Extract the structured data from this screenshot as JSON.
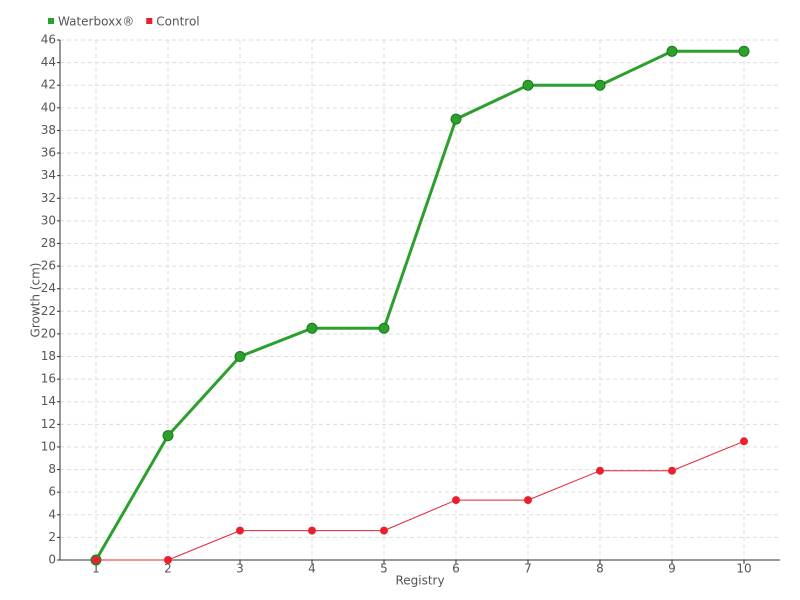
{
  "chart_data": {
    "type": "line",
    "x_label": "Registry",
    "y_label": "Growth (cm)",
    "categories": [
      "1",
      "2",
      "3",
      "4",
      "5",
      "6",
      "7",
      "8",
      "9",
      "10"
    ],
    "series": [
      {
        "name": "Waterboxx®",
        "color": "#2ca02c",
        "values": [
          0,
          11,
          18,
          20.5,
          20.5,
          39,
          42,
          42,
          45,
          45
        ]
      },
      {
        "name": "Control",
        "color": "#e8202f",
        "values": [
          0,
          0,
          2.6,
          2.6,
          2.6,
          5.3,
          5.3,
          7.9,
          7.9,
          10.5
        ]
      }
    ],
    "ylim": [
      0,
      46
    ],
    "yticks": [
      0,
      2,
      4,
      6,
      8,
      10,
      12,
      14,
      16,
      18,
      20,
      22,
      24,
      26,
      28,
      30,
      32,
      34,
      36,
      38,
      40,
      42,
      44,
      46
    ],
    "grid": true,
    "legend": "top-left"
  }
}
